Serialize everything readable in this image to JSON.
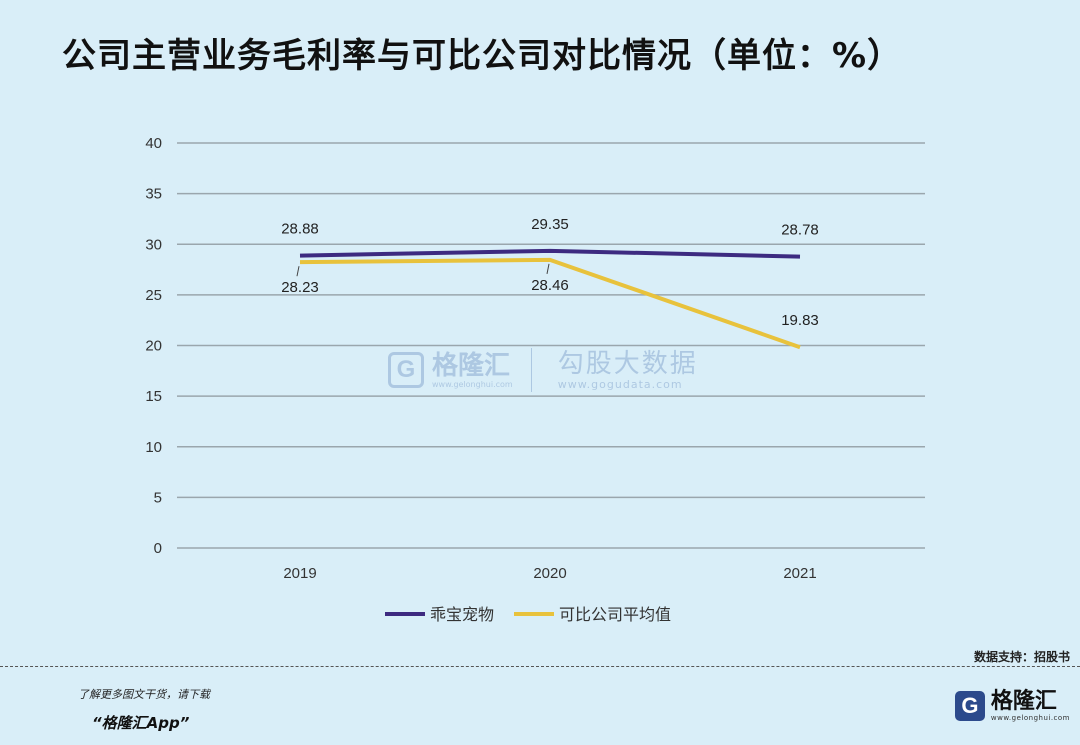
{
  "title": "公司主营业务毛利率与可比公司对比情况（单位：%）",
  "chart_data": {
    "type": "line",
    "categories": [
      "2019",
      "2020",
      "2021"
    ],
    "series": [
      {
        "name": "乖宝宠物",
        "values": [
          28.88,
          29.35,
          28.78
        ],
        "labels": [
          "28.88",
          "29.35",
          "28.78"
        ],
        "color": "#3d2a80"
      },
      {
        "name": "可比公司平均值",
        "values": [
          28.23,
          28.46,
          19.83
        ],
        "labels": [
          "28.23",
          "28.46",
          "19.83"
        ],
        "color": "#e8c23c"
      }
    ],
    "ylim": [
      0,
      40
    ],
    "yticks": [
      "0",
      "5",
      "10",
      "15",
      "20",
      "25",
      "30",
      "35",
      "40"
    ],
    "grid": true,
    "legend": "bottom"
  },
  "watermark": {
    "brand": "格隆汇",
    "brand_url": "www.gelonghui.com",
    "partner": "勾股大数据",
    "partner_url": "www.gogudata.com"
  },
  "source": "数据支持：招股书",
  "promo": {
    "line1": "了解更多图文干货，请下载",
    "line2": "“格隆汇App”"
  },
  "footer_brand": {
    "logo_letter": "G",
    "name": "格隆汇",
    "url": "www.gelonghui.com"
  }
}
